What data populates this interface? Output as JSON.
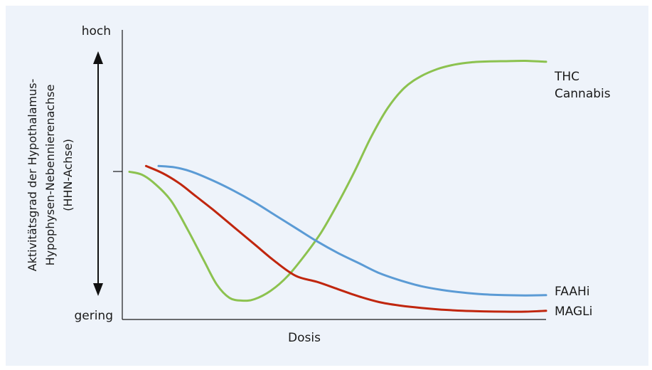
{
  "chart_data": {
    "type": "line",
    "title": "",
    "xlabel": "Dosis",
    "ylabel_lines": [
      "Aktivitätsgrad der Hypothalamus-",
      "Hypophysen-Nebennierenachse",
      "(HHN-Achse)"
    ],
    "y_tick_top": "hoch",
    "y_tick_bottom": "gering",
    "xlim": [
      0,
      100
    ],
    "ylim": [
      0,
      100
    ],
    "grid": false,
    "legend": "direct-labels-right",
    "series": [
      {
        "name": "THC Cannabis",
        "label_lines": [
          "THC",
          "Cannabis"
        ],
        "color": "#8cc24f",
        "x": [
          0,
          3,
          6,
          10,
          14,
          18,
          21,
          24,
          27,
          30,
          34,
          38,
          42,
          46,
          50,
          54,
          58,
          62,
          66,
          70,
          74,
          78,
          82,
          86,
          90,
          95,
          100
        ],
        "y": [
          51,
          50,
          47,
          41,
          31,
          20,
          12,
          7.5,
          6.5,
          7,
          10,
          15,
          22,
          30,
          40,
          51,
          63,
          73,
          80,
          84,
          86.5,
          88,
          88.8,
          89.1,
          89.2,
          89.3,
          89
        ]
      },
      {
        "name": "MAGLi",
        "color": "#c0260e",
        "x": [
          4,
          8,
          12,
          16,
          20,
          25,
          30,
          35,
          40,
          45,
          50,
          55,
          60,
          65,
          70,
          75,
          80,
          85,
          90,
          95,
          100
        ],
        "y": [
          53,
          50.5,
          47,
          42.5,
          38,
          32,
          26,
          20,
          15,
          13,
          10.5,
          8,
          6,
          4.8,
          4,
          3.4,
          3,
          2.8,
          2.7,
          2.7,
          3
        ]
      },
      {
        "name": "FAAHi",
        "color": "#5b9bd5",
        "x": [
          7,
          11,
          15,
          20,
          25,
          30,
          35,
          40,
          45,
          50,
          55,
          60,
          65,
          70,
          75,
          80,
          85,
          90,
          95,
          100
        ],
        "y": [
          53,
          52.5,
          51,
          48,
          44.5,
          40.5,
          36,
          31.5,
          27,
          23,
          19.5,
          16,
          13.5,
          11.5,
          10.2,
          9.3,
          8.7,
          8.4,
          8.3,
          8.4
        ]
      }
    ]
  }
}
